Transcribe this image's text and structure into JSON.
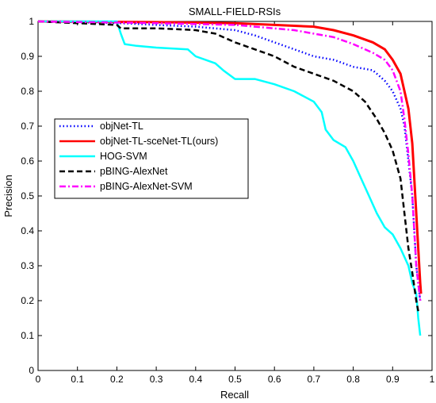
{
  "chart_data": {
    "type": "line",
    "title": "SMALL-FIELD-RSIs",
    "xlabel": "Recall",
    "ylabel": "Precision",
    "xlim": [
      0,
      1
    ],
    "ylim": [
      0,
      1
    ],
    "xticks": [
      "0",
      "0.1",
      "0.2",
      "0.3",
      "0.4",
      "0.5",
      "0.6",
      "0.7",
      "0.8",
      "0.9",
      "1"
    ],
    "yticks": [
      "0",
      "0.1",
      "0.2",
      "0.3",
      "0.4",
      "0.5",
      "0.6",
      "0.7",
      "0.8",
      "0.9",
      "1"
    ],
    "grid": false,
    "legend_position": "center-left",
    "series": [
      {
        "name": "objNet-TL",
        "color": "#0000ff",
        "dash": "dotted",
        "points": [
          [
            0,
            1
          ],
          [
            0.21,
            0.995
          ],
          [
            0.3,
            0.99
          ],
          [
            0.4,
            0.985
          ],
          [
            0.5,
            0.975
          ],
          [
            0.55,
            0.96
          ],
          [
            0.6,
            0.94
          ],
          [
            0.65,
            0.92
          ],
          [
            0.7,
            0.9
          ],
          [
            0.75,
            0.89
          ],
          [
            0.8,
            0.87
          ],
          [
            0.85,
            0.86
          ],
          [
            0.88,
            0.83
          ],
          [
            0.9,
            0.8
          ],
          [
            0.92,
            0.75
          ],
          [
            0.93,
            0.7
          ],
          [
            0.94,
            0.6
          ],
          [
            0.95,
            0.5
          ],
          [
            0.955,
            0.4
          ],
          [
            0.96,
            0.3
          ],
          [
            0.965,
            0.25
          ],
          [
            0.97,
            0.2
          ]
        ]
      },
      {
        "name": "objNet-TL-sceNet-TL(ours)",
        "color": "#ff0000",
        "dash": "solid",
        "points": [
          [
            0,
            1
          ],
          [
            0.3,
            0.998
          ],
          [
            0.5,
            0.995
          ],
          [
            0.6,
            0.99
          ],
          [
            0.7,
            0.985
          ],
          [
            0.75,
            0.975
          ],
          [
            0.8,
            0.96
          ],
          [
            0.85,
            0.94
          ],
          [
            0.88,
            0.92
          ],
          [
            0.9,
            0.89
          ],
          [
            0.92,
            0.85
          ],
          [
            0.93,
            0.8
          ],
          [
            0.94,
            0.75
          ],
          [
            0.95,
            0.65
          ],
          [
            0.955,
            0.55
          ],
          [
            0.96,
            0.45
          ],
          [
            0.965,
            0.35
          ],
          [
            0.97,
            0.25
          ],
          [
            0.972,
            0.22
          ]
        ]
      },
      {
        "name": "HOG-SVM",
        "color": "#00ffff",
        "dash": "solid",
        "points": [
          [
            0,
            1
          ],
          [
            0.2,
            1
          ],
          [
            0.21,
            0.965
          ],
          [
            0.22,
            0.935
          ],
          [
            0.25,
            0.93
          ],
          [
            0.3,
            0.925
          ],
          [
            0.38,
            0.92
          ],
          [
            0.4,
            0.9
          ],
          [
            0.45,
            0.88
          ],
          [
            0.47,
            0.86
          ],
          [
            0.5,
            0.835
          ],
          [
            0.55,
            0.835
          ],
          [
            0.6,
            0.82
          ],
          [
            0.65,
            0.8
          ],
          [
            0.7,
            0.77
          ],
          [
            0.72,
            0.74
          ],
          [
            0.73,
            0.69
          ],
          [
            0.75,
            0.66
          ],
          [
            0.78,
            0.64
          ],
          [
            0.8,
            0.6
          ],
          [
            0.82,
            0.55
          ],
          [
            0.84,
            0.5
          ],
          [
            0.86,
            0.45
          ],
          [
            0.88,
            0.41
          ],
          [
            0.9,
            0.39
          ],
          [
            0.92,
            0.35
          ],
          [
            0.94,
            0.3
          ],
          [
            0.95,
            0.25
          ],
          [
            0.96,
            0.22
          ],
          [
            0.965,
            0.15
          ],
          [
            0.97,
            0.1
          ]
        ]
      },
      {
        "name": "pBING-AlexNet",
        "color": "#000000",
        "dash": "dashed",
        "points": [
          [
            0,
            1
          ],
          [
            0.2,
            0.99
          ],
          [
            0.21,
            0.98
          ],
          [
            0.3,
            0.98
          ],
          [
            0.35,
            0.978
          ],
          [
            0.4,
            0.975
          ],
          [
            0.45,
            0.965
          ],
          [
            0.5,
            0.94
          ],
          [
            0.55,
            0.92
          ],
          [
            0.6,
            0.9
          ],
          [
            0.65,
            0.87
          ],
          [
            0.7,
            0.85
          ],
          [
            0.75,
            0.83
          ],
          [
            0.8,
            0.8
          ],
          [
            0.83,
            0.77
          ],
          [
            0.86,
            0.72
          ],
          [
            0.88,
            0.68
          ],
          [
            0.9,
            0.63
          ],
          [
            0.92,
            0.55
          ],
          [
            0.93,
            0.45
          ],
          [
            0.94,
            0.35
          ],
          [
            0.95,
            0.28
          ],
          [
            0.96,
            0.2
          ],
          [
            0.965,
            0.17
          ]
        ]
      },
      {
        "name": "pBING-AlexNet-SVM",
        "color": "#ff00ff",
        "dash": "dashdot",
        "points": [
          [
            0,
            1
          ],
          [
            0.3,
            0.995
          ],
          [
            0.5,
            0.99
          ],
          [
            0.6,
            0.98
          ],
          [
            0.65,
            0.975
          ],
          [
            0.7,
            0.965
          ],
          [
            0.75,
            0.955
          ],
          [
            0.8,
            0.935
          ],
          [
            0.85,
            0.91
          ],
          [
            0.88,
            0.89
          ],
          [
            0.9,
            0.86
          ],
          [
            0.92,
            0.8
          ],
          [
            0.93,
            0.72
          ],
          [
            0.94,
            0.62
          ],
          [
            0.95,
            0.5
          ],
          [
            0.955,
            0.4
          ],
          [
            0.96,
            0.3
          ],
          [
            0.965,
            0.25
          ],
          [
            0.97,
            0.2
          ]
        ]
      }
    ]
  }
}
